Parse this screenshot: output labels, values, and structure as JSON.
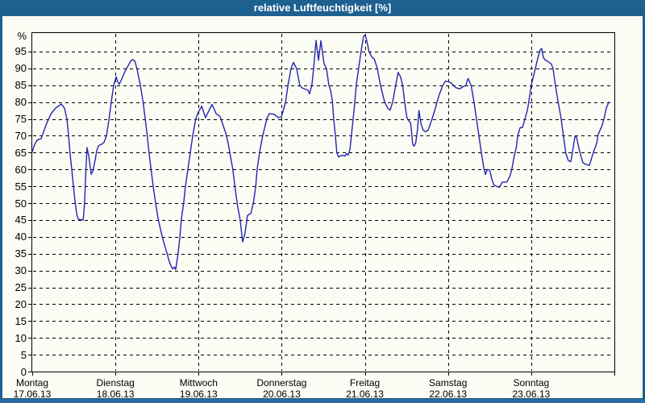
{
  "window": {
    "title": "relative Luftfeuchtigkeit [%]",
    "colors": {
      "chrome": "#1e608f",
      "chrome_bottom": "#2a6ba1",
      "background": "#fbfcf3",
      "grid": "#000000",
      "text": "#000000",
      "title_text": "#ffffff"
    }
  },
  "chart_data": {
    "type": "line",
    "title": "relative Luftfeuchtigkeit [%]",
    "ylabel": "%",
    "xlabel": "",
    "ylim": [
      0,
      100.5
    ],
    "yticks": [
      0,
      5,
      10,
      15,
      20,
      25,
      30,
      35,
      40,
      45,
      50,
      55,
      60,
      65,
      70,
      75,
      80,
      85,
      90,
      95
    ],
    "xlim_hours": [
      0,
      168
    ],
    "x_gridline_hours": [
      24,
      48,
      72,
      96,
      120,
      144
    ],
    "x_tick_hours": [
      0,
      24,
      48,
      72,
      96,
      120,
      144,
      168
    ],
    "grid": "dashed",
    "legend_position": "none",
    "line_color": "#2424b2",
    "days": [
      {
        "name": "Montag",
        "date": "17.06.13",
        "start_hour": 0
      },
      {
        "name": "Dienstag",
        "date": "18.06.13",
        "start_hour": 24
      },
      {
        "name": "Mittwoch",
        "date": "19.06.13",
        "start_hour": 48
      },
      {
        "name": "Donnerstag",
        "date": "20.06.13",
        "start_hour": 72
      },
      {
        "name": "Freitag",
        "date": "21.06.13",
        "start_hour": 96
      },
      {
        "name": "Samstag",
        "date": "22.06.13",
        "start_hour": 120
      },
      {
        "name": "Sonntag",
        "date": "23.06.13",
        "start_hour": 144
      }
    ],
    "series": [
      {
        "name": "relative Luftfeuchtigkeit",
        "unit": "%",
        "points_hour_value": [
          [
            0,
            65.3
          ],
          [
            0.7,
            67.4
          ],
          [
            1.4,
            68.7
          ],
          [
            2.6,
            69.2
          ],
          [
            4,
            73.3
          ],
          [
            5.4,
            76.5
          ],
          [
            6.7,
            78.2
          ],
          [
            8.4,
            79.4
          ],
          [
            9.3,
            78.2
          ],
          [
            10,
            75
          ],
          [
            10.5,
            70
          ],
          [
            10.9,
            65
          ],
          [
            11.4,
            60
          ],
          [
            11.9,
            55
          ],
          [
            12.4,
            50
          ],
          [
            12.9,
            46.5
          ],
          [
            13.3,
            45.2
          ],
          [
            14.7,
            45
          ],
          [
            15.1,
            50
          ],
          [
            15.5,
            60
          ],
          [
            15.8,
            66.5
          ],
          [
            16.3,
            64
          ],
          [
            17,
            58.6
          ],
          [
            17.5,
            59.5
          ],
          [
            18.2,
            63
          ],
          [
            18.6,
            65.5
          ],
          [
            19.1,
            67
          ],
          [
            20,
            67.5
          ],
          [
            20.7,
            68
          ],
          [
            21.4,
            70
          ],
          [
            22.1,
            74.5
          ],
          [
            22.8,
            80
          ],
          [
            23.5,
            85
          ],
          [
            24.2,
            87.5
          ],
          [
            24.7,
            86
          ],
          [
            25.1,
            85.3
          ],
          [
            25.8,
            86.8
          ],
          [
            26.5,
            88.5
          ],
          [
            27.5,
            90.5
          ],
          [
            28.4,
            92.2
          ],
          [
            29,
            92.6
          ],
          [
            29.6,
            92.2
          ],
          [
            30.2,
            90
          ],
          [
            31.2,
            85
          ],
          [
            32,
            80
          ],
          [
            32.6,
            75
          ],
          [
            33.2,
            70
          ],
          [
            33.7,
            65
          ],
          [
            34.3,
            60
          ],
          [
            34.9,
            55
          ],
          [
            35.6,
            50
          ],
          [
            36.4,
            45
          ],
          [
            37.5,
            40
          ],
          [
            38.9,
            35
          ],
          [
            39.6,
            32.5
          ],
          [
            40,
            31.5
          ],
          [
            40.5,
            30.5
          ],
          [
            41,
            31
          ],
          [
            41.4,
            30.3
          ],
          [
            42.1,
            35
          ],
          [
            42.6,
            40
          ],
          [
            43,
            45
          ],
          [
            43.7,
            50
          ],
          [
            44.2,
            55
          ],
          [
            44.9,
            60
          ],
          [
            45.6,
            65
          ],
          [
            46.3,
            70
          ],
          [
            47.2,
            75
          ],
          [
            47.9,
            77
          ],
          [
            48.9,
            78.8
          ],
          [
            50,
            75.4
          ],
          [
            51.9,
            79.3
          ],
          [
            53.1,
            76.5
          ],
          [
            54.2,
            75.8
          ],
          [
            55.1,
            73
          ],
          [
            55.8,
            71
          ],
          [
            56.5,
            68
          ],
          [
            57.2,
            64
          ],
          [
            57.9,
            60
          ],
          [
            58.6,
            54
          ],
          [
            59.3,
            49
          ],
          [
            60,
            45
          ],
          [
            60.7,
            38.5
          ],
          [
            61.4,
            41
          ],
          [
            62.1,
            46.3
          ],
          [
            63.1,
            47
          ],
          [
            63.8,
            50
          ],
          [
            64.5,
            55
          ],
          [
            64.9,
            60
          ],
          [
            65.6,
            65
          ],
          [
            66.5,
            70
          ],
          [
            67.7,
            75
          ],
          [
            68.4,
            76.6
          ],
          [
            69.8,
            76.4
          ],
          [
            71,
            75.4
          ],
          [
            71.9,
            75.6
          ],
          [
            73.1,
            80
          ],
          [
            73.8,
            85
          ],
          [
            74.7,
            90
          ],
          [
            75.4,
            91.8
          ],
          [
            76.3,
            90
          ],
          [
            77.2,
            85
          ],
          [
            77.9,
            84.2
          ],
          [
            79.6,
            83.5
          ],
          [
            80,
            82.4
          ],
          [
            80.7,
            85
          ],
          [
            81.2,
            90
          ],
          [
            81.9,
            98.3
          ],
          [
            82.6,
            92.4
          ],
          [
            83.3,
            98.2
          ],
          [
            84.2,
            91.4
          ],
          [
            84.9,
            90
          ],
          [
            85.6,
            85
          ],
          [
            86.1,
            83.5
          ],
          [
            86.6,
            80.5
          ],
          [
            87,
            75
          ],
          [
            87.5,
            70
          ],
          [
            87.9,
            65
          ],
          [
            88.4,
            63.7
          ],
          [
            89.3,
            64.2
          ],
          [
            90.3,
            64
          ],
          [
            90.7,
            64.7
          ],
          [
            91.2,
            64.3
          ],
          [
            91.7,
            66
          ],
          [
            92.1,
            70
          ],
          [
            92.6,
            75
          ],
          [
            93.1,
            80
          ],
          [
            93.5,
            85
          ],
          [
            94.2,
            90
          ],
          [
            94.9,
            95
          ],
          [
            95.6,
            99.5
          ],
          [
            96.1,
            100
          ],
          [
            96.8,
            97
          ],
          [
            97.2,
            95
          ],
          [
            98,
            93.4
          ],
          [
            98.7,
            92.8
          ],
          [
            99.6,
            90
          ],
          [
            100.5,
            85
          ],
          [
            101.7,
            80
          ],
          [
            102.6,
            78.2
          ],
          [
            103.3,
            77.6
          ],
          [
            104,
            80
          ],
          [
            104.9,
            85
          ],
          [
            105.6,
            88.8
          ],
          [
            106.3,
            87.5
          ],
          [
            106.9,
            85
          ],
          [
            107.4,
            80.5
          ],
          [
            108.1,
            75.5
          ],
          [
            108.7,
            74.4
          ],
          [
            109.2,
            73.8
          ],
          [
            109.8,
            67.5
          ],
          [
            110.2,
            66.9
          ],
          [
            110.7,
            68
          ],
          [
            111.2,
            72
          ],
          [
            111.6,
            77.5
          ],
          [
            112.2,
            73.5
          ],
          [
            112.8,
            71.7
          ],
          [
            113.5,
            71.2
          ],
          [
            114.2,
            71.6
          ],
          [
            114.9,
            73.5
          ],
          [
            115.4,
            75
          ],
          [
            116.3,
            78
          ],
          [
            116.8,
            80
          ],
          [
            117.4,
            82
          ],
          [
            118.5,
            85
          ],
          [
            119.2,
            86.2
          ],
          [
            120.1,
            86.1
          ],
          [
            121,
            85.6
          ],
          [
            122.2,
            84.3
          ],
          [
            123.3,
            83.9
          ],
          [
            124.4,
            84.6
          ],
          [
            125.1,
            84.9
          ],
          [
            125.8,
            87
          ],
          [
            126.7,
            84.8
          ],
          [
            127.5,
            80
          ],
          [
            128.2,
            75
          ],
          [
            128.9,
            70
          ],
          [
            129.6,
            65
          ],
          [
            130.3,
            60.5
          ],
          [
            130.8,
            58.5
          ],
          [
            131.3,
            60
          ],
          [
            132,
            59.8
          ],
          [
            132.7,
            56.9
          ],
          [
            133.3,
            55.3
          ],
          [
            134,
            55
          ],
          [
            134.8,
            54.7
          ],
          [
            135.6,
            56.2
          ],
          [
            137,
            56.3
          ],
          [
            137.8,
            57.9
          ],
          [
            138.4,
            60
          ],
          [
            139.1,
            64
          ],
          [
            139.7,
            66.5
          ],
          [
            140.1,
            70
          ],
          [
            140.8,
            72.4
          ],
          [
            141.5,
            72.5
          ],
          [
            142.2,
            75
          ],
          [
            142.9,
            77.6
          ],
          [
            143.3,
            80
          ],
          [
            144,
            85
          ],
          [
            145.2,
            90
          ],
          [
            145.9,
            93
          ],
          [
            146.6,
            95.5
          ],
          [
            147,
            95.9
          ],
          [
            147.5,
            93.3
          ],
          [
            148,
            92.5
          ],
          [
            148.9,
            92
          ],
          [
            149.8,
            91.3
          ],
          [
            150.3,
            90
          ],
          [
            151,
            85
          ],
          [
            151.7,
            80.5
          ],
          [
            152.6,
            75.3
          ],
          [
            153.3,
            70
          ],
          [
            154,
            64.8
          ],
          [
            154.7,
            62.7
          ],
          [
            155.4,
            62.3
          ],
          [
            155.9,
            65
          ],
          [
            156.6,
            69.7
          ],
          [
            157,
            69.9
          ],
          [
            158,
            65.3
          ],
          [
            158.9,
            62
          ],
          [
            159.8,
            61.5
          ],
          [
            160.8,
            61.2
          ],
          [
            161.9,
            65
          ],
          [
            162.9,
            67.8
          ],
          [
            163.3,
            70.3
          ],
          [
            164.5,
            73.2
          ],
          [
            165,
            75
          ],
          [
            165.7,
            78.3
          ],
          [
            166.4,
            80
          ]
        ]
      }
    ]
  }
}
